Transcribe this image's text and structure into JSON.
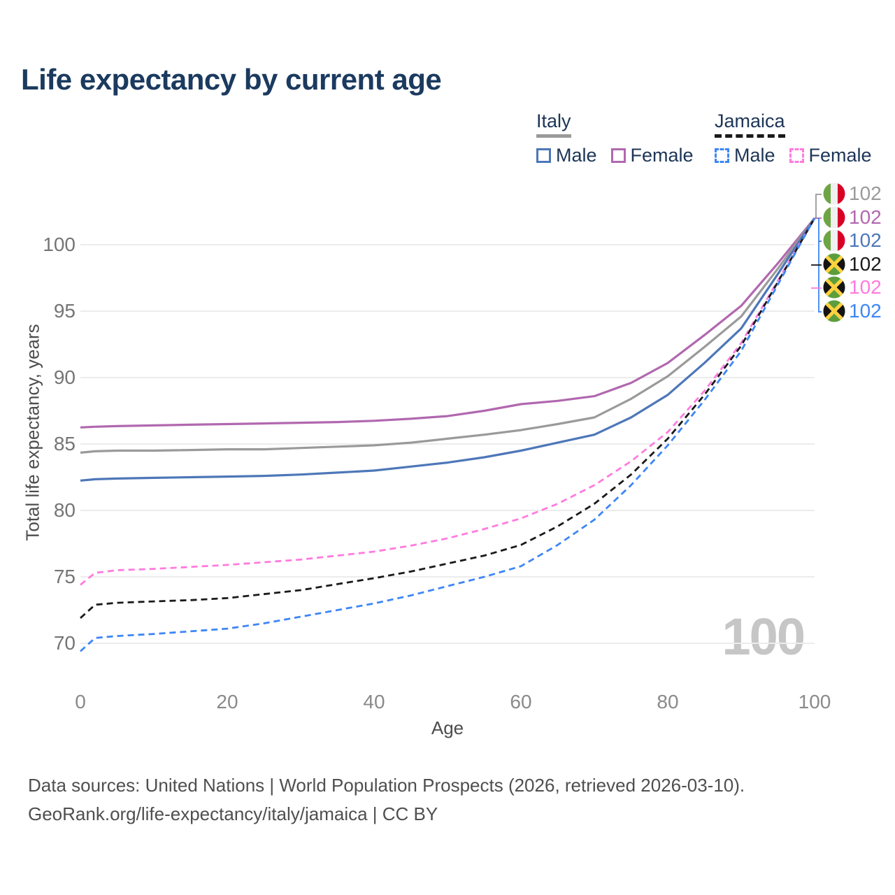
{
  "title": "Life expectancy by current age",
  "legend": {
    "groups": [
      {
        "label": "Italy",
        "underline_style": "solid",
        "underline_color": "#9a9a9a",
        "items": [
          {
            "label": "Male",
            "color": "#4d77b8",
            "line_style": "solid"
          },
          {
            "label": "Female",
            "color": "#b168af",
            "line_style": "solid"
          }
        ]
      },
      {
        "label": "Jamaica",
        "underline_style": "dashed",
        "underline_color": "#1a1a1a",
        "items": [
          {
            "label": "Male",
            "color": "#3e86f5",
            "line_style": "dashed"
          },
          {
            "label": "Female",
            "color": "#ff7bdf",
            "line_style": "dashed"
          }
        ]
      }
    ]
  },
  "chart_data": {
    "type": "line",
    "title": "Life expectancy by current age",
    "xlabel": "Age",
    "ylabel": "Total life expectancy, years",
    "xlim": [
      0,
      100
    ],
    "ylim": [
      69,
      103
    ],
    "x_ticks": [
      0,
      20,
      40,
      60,
      80,
      100
    ],
    "y_ticks": [
      70,
      75,
      80,
      85,
      90,
      95,
      100
    ],
    "grid": "horizontal",
    "legend_position": "top-right",
    "x": [
      0,
      2,
      5,
      10,
      15,
      20,
      25,
      30,
      35,
      40,
      45,
      50,
      55,
      60,
      65,
      70,
      75,
      80,
      85,
      90,
      95,
      100
    ],
    "series": [
      {
        "name": "Italy Female",
        "country": "Italy",
        "sex": "Female",
        "color": "#b168af",
        "style": "solid",
        "values": [
          86.25,
          86.3,
          86.35,
          86.4,
          86.45,
          86.5,
          86.55,
          86.6,
          86.65,
          86.75,
          86.9,
          87.1,
          87.5,
          88.0,
          88.25,
          88.6,
          89.6,
          91.1,
          93.2,
          95.4,
          98.6,
          102
        ]
      },
      {
        "name": "Italy Both sexes",
        "country": "Italy",
        "sex": "Both",
        "color": "#9a9a9a",
        "style": "solid",
        "values": [
          84.35,
          84.45,
          84.5,
          84.5,
          84.55,
          84.6,
          84.6,
          84.7,
          84.8,
          84.9,
          85.1,
          85.4,
          85.7,
          86.05,
          86.5,
          87.0,
          88.4,
          90.1,
          92.3,
          94.6,
          98.2,
          102
        ]
      },
      {
        "name": "Italy Male",
        "country": "Italy",
        "sex": "Male",
        "color": "#4d77b8",
        "style": "solid",
        "values": [
          82.25,
          82.35,
          82.4,
          82.45,
          82.5,
          82.55,
          82.6,
          82.7,
          82.85,
          83.0,
          83.3,
          83.6,
          84.0,
          84.5,
          85.1,
          85.7,
          87.0,
          88.7,
          91.1,
          93.7,
          97.8,
          102
        ]
      },
      {
        "name": "Jamaica Female",
        "country": "Jamaica",
        "sex": "Female",
        "color": "#ff7bdf",
        "style": "dashed",
        "values": [
          74.4,
          75.3,
          75.5,
          75.6,
          75.75,
          75.9,
          76.1,
          76.3,
          76.6,
          76.9,
          77.35,
          77.9,
          78.6,
          79.4,
          80.5,
          81.9,
          83.7,
          85.9,
          89.0,
          92.6,
          97.3,
          102
        ]
      },
      {
        "name": "Jamaica Both sexes",
        "country": "Jamaica",
        "sex": "Both",
        "color": "#1a1a1a",
        "style": "dashed",
        "values": [
          71.9,
          72.9,
          73.05,
          73.15,
          73.25,
          73.4,
          73.7,
          74.0,
          74.45,
          74.9,
          75.4,
          76.0,
          76.6,
          77.4,
          78.8,
          80.5,
          82.7,
          85.4,
          88.7,
          92.4,
          97.2,
          102
        ]
      },
      {
        "name": "Jamaica Male",
        "country": "Jamaica",
        "sex": "Male",
        "color": "#3e86f5",
        "style": "dashed",
        "values": [
          69.4,
          70.4,
          70.55,
          70.7,
          70.9,
          71.1,
          71.5,
          72.0,
          72.5,
          73.0,
          73.6,
          74.3,
          75.0,
          75.8,
          77.4,
          79.3,
          81.9,
          84.9,
          88.3,
          92.0,
          97.0,
          102
        ]
      }
    ],
    "end_labels": [
      {
        "flag": "italy",
        "series": "Italy Both sexes",
        "value": "102",
        "color": "#9a9a9a"
      },
      {
        "flag": "italy",
        "series": "Italy Female",
        "value": "102",
        "color": "#b168af"
      },
      {
        "flag": "italy",
        "series": "Italy Male",
        "value": "102",
        "color": "#4d77b8"
      },
      {
        "flag": "jamaica",
        "series": "Jamaica Both sexes",
        "value": "102",
        "color": "#1a1a1a"
      },
      {
        "flag": "jamaica",
        "series": "Jamaica Female",
        "value": "102",
        "color": "#ff7bdf"
      },
      {
        "flag": "jamaica",
        "series": "Jamaica Male",
        "value": "102",
        "color": "#3e86f5"
      }
    ]
  },
  "watermark": "100",
  "footer": {
    "line1": "Data sources: United Nations | World Population Prospects (2026, retrieved 2026-03-10).",
    "line2": "GeoRank.org/life-expectancy/italy/jamaica | CC BY"
  }
}
